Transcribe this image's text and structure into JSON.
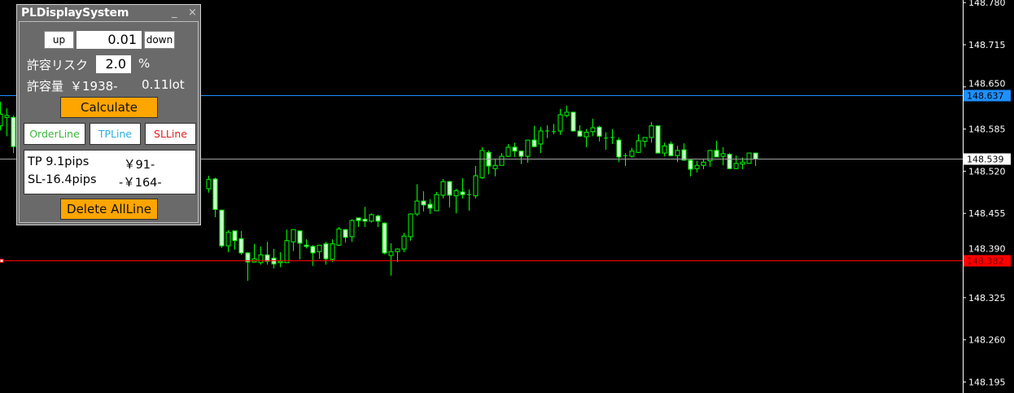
{
  "panel": {
    "title": "PLDisplaySystem",
    "minimize_glyph": "_",
    "close_glyph": "×",
    "up_label": "up",
    "lot_step_value": "0.01",
    "down_label": "down",
    "risk_label": "許容リスク",
    "risk_value": "2.0",
    "risk_unit": "%",
    "allowance_label": "許容量",
    "allowance_amount": "￥1938-",
    "lot_value": "0.11lot",
    "calculate_label": "Calculate",
    "order_line_label": "OrderLine",
    "tp_line_label": "TPLine",
    "sl_line_label": "SLLine",
    "tp_pips": "TP 9.1pips",
    "tp_amount": "￥91-",
    "sl_pips": "SL-16.4pips",
    "sl_amount": "-￥164-",
    "delete_label": "Delete AllLine",
    "colors": {
      "orange": "#ffa500",
      "order": "#3cb83c",
      "tp": "#2eaee0",
      "sl": "#e02020"
    }
  },
  "chart_data": {
    "type": "candlestick",
    "ylim": [
      148.178,
      148.784
    ],
    "y_ticks": [
      "148.780",
      "148.715",
      "148.650",
      "148.585",
      "148.520",
      "148.455",
      "148.390",
      "148.325",
      "148.260",
      "148.195"
    ],
    "grid": false,
    "colors": {
      "bull_outline": "#00ff00",
      "bear_fill": "#ccffcc",
      "background": "#000000"
    },
    "hlines": [
      {
        "price": "148.637",
        "color": "#1e90ff",
        "label_bg": "#1e90ff",
        "label_text": "#000000"
      },
      {
        "price": "148.539",
        "color": "#a0a0a0",
        "label_bg": "#ffffff",
        "label_text": "#000000"
      },
      {
        "price": "148.382",
        "color": "#ff0000",
        "label_bg": "#ff0000",
        "label_text": "#800000"
      }
    ],
    "candles_ohlc": [
      [
        148.59,
        148.627,
        148.583,
        148.608
      ],
      [
        148.603,
        148.617,
        148.574,
        148.606
      ],
      [
        148.603,
        148.606,
        148.548,
        148.558
      ],
      null,
      null,
      null,
      null,
      null,
      null,
      null,
      null,
      null,
      null,
      null,
      null,
      null,
      null,
      null,
      null,
      null,
      null,
      null,
      null,
      null,
      null,
      null,
      null,
      null,
      null,
      null,
      null,
      null,
      [
        148.493,
        148.513,
        148.487,
        148.507
      ],
      [
        148.508,
        148.51,
        148.449,
        148.461
      ],
      [
        148.46,
        148.461,
        148.402,
        148.405
      ],
      [
        148.405,
        148.429,
        148.395,
        148.426
      ],
      [
        148.428,
        148.428,
        148.399,
        148.413
      ],
      [
        148.416,
        148.428,
        148.391,
        148.394
      ],
      [
        148.394,
        148.395,
        148.351,
        148.38
      ],
      [
        148.38,
        148.408,
        148.379,
        148.385
      ],
      [
        148.379,
        148.404,
        148.376,
        148.391
      ],
      [
        148.391,
        148.411,
        148.376,
        148.381
      ],
      [
        148.386,
        148.4,
        148.37,
        148.377
      ],
      [
        148.379,
        148.395,
        148.372,
        148.381
      ],
      [
        148.379,
        148.43,
        148.379,
        148.413
      ],
      [
        148.411,
        148.43,
        148.397,
        148.43
      ],
      [
        148.428,
        148.428,
        148.384,
        148.409
      ],
      [
        148.406,
        148.415,
        148.401,
        148.404
      ],
      [
        148.404,
        148.406,
        148.374,
        148.394
      ],
      [
        148.396,
        148.406,
        148.385,
        148.406
      ],
      [
        148.408,
        148.411,
        148.376,
        148.385
      ],
      [
        148.384,
        148.415,
        148.38,
        148.408
      ],
      [
        148.406,
        148.434,
        148.405,
        148.431
      ],
      [
        148.43,
        148.431,
        148.41,
        148.418
      ],
      [
        148.419,
        148.446,
        148.411,
        148.444
      ],
      [
        148.448,
        148.448,
        148.434,
        148.444
      ],
      [
        148.446,
        148.465,
        148.434,
        148.443
      ],
      [
        148.443,
        148.455,
        148.441,
        148.453
      ],
      [
        148.451,
        148.453,
        148.434,
        148.443
      ],
      [
        148.44,
        148.441,
        148.392,
        148.394
      ],
      [
        148.39,
        148.409,
        148.359,
        148.396
      ],
      [
        148.396,
        148.401,
        148.38,
        148.4
      ],
      [
        148.4,
        148.425,
        148.395,
        148.42
      ],
      [
        148.419,
        148.455,
        148.413,
        148.454
      ],
      [
        148.454,
        148.5,
        148.451,
        148.474
      ],
      [
        148.474,
        148.489,
        148.458,
        148.468
      ],
      [
        148.469,
        148.477,
        148.454,
        148.463
      ],
      [
        148.459,
        148.488,
        148.459,
        148.484
      ],
      [
        148.483,
        148.508,
        148.478,
        148.504
      ],
      [
        148.504,
        148.505,
        148.464,
        148.483
      ],
      [
        148.482,
        148.493,
        148.455,
        148.49
      ],
      [
        148.488,
        148.509,
        148.478,
        148.484
      ],
      [
        148.484,
        148.492,
        148.459,
        148.484
      ],
      [
        148.482,
        148.528,
        148.478,
        148.513
      ],
      [
        148.51,
        148.557,
        148.508,
        148.552
      ],
      [
        148.549,
        148.552,
        148.515,
        148.528
      ],
      [
        148.524,
        148.539,
        148.512,
        148.529
      ],
      [
        148.529,
        148.548,
        148.529,
        148.543
      ],
      [
        148.543,
        148.562,
        148.542,
        148.557
      ],
      [
        148.557,
        148.564,
        148.542,
        148.551
      ],
      [
        148.551,
        148.551,
        148.531,
        148.543
      ],
      [
        148.543,
        148.568,
        148.533,
        148.568
      ],
      [
        148.568,
        148.59,
        148.557,
        148.558
      ],
      [
        148.562,
        148.588,
        148.548,
        148.582
      ],
      [
        148.582,
        148.591,
        148.571,
        148.582
      ],
      [
        148.581,
        148.593,
        148.577,
        148.581
      ],
      [
        148.582,
        148.616,
        148.576,
        148.607
      ],
      [
        148.606,
        148.621,
        148.603,
        148.611
      ],
      [
        148.611,
        148.611,
        148.581,
        148.582
      ],
      [
        148.582,
        148.591,
        148.573,
        148.574
      ],
      [
        148.573,
        148.585,
        148.557,
        148.58
      ],
      [
        148.581,
        148.601,
        148.574,
        148.587
      ],
      [
        148.588,
        148.59,
        148.566,
        148.574
      ],
      [
        148.571,
        148.58,
        148.553,
        148.571
      ],
      [
        148.572,
        148.585,
        148.562,
        148.572
      ],
      [
        148.568,
        148.572,
        148.534,
        148.542
      ],
      [
        148.544,
        148.548,
        148.528,
        148.544
      ],
      [
        148.543,
        148.556,
        148.541,
        148.551
      ],
      [
        148.549,
        148.577,
        148.548,
        148.567
      ],
      [
        148.566,
        148.572,
        148.557,
        148.572
      ],
      [
        148.572,
        148.596,
        148.564,
        148.59
      ],
      [
        148.59,
        148.59,
        148.548,
        148.548
      ],
      [
        148.548,
        148.564,
        148.543,
        148.559
      ],
      [
        148.562,
        148.566,
        148.543,
        148.544
      ],
      [
        148.544,
        148.559,
        148.534,
        148.552
      ],
      [
        148.553,
        148.563,
        148.537,
        148.537
      ],
      [
        148.537,
        148.539,
        148.512,
        148.523
      ],
      [
        148.524,
        148.536,
        148.518,
        148.529
      ],
      [
        148.529,
        148.538,
        148.523,
        148.534
      ],
      [
        148.536,
        148.552,
        148.527,
        148.552
      ],
      [
        148.552,
        148.567,
        148.542,
        148.542
      ],
      [
        148.543,
        148.557,
        148.529,
        148.547
      ],
      [
        148.546,
        148.548,
        148.523,
        148.524
      ],
      [
        148.524,
        148.544,
        148.523,
        148.532
      ],
      [
        148.531,
        148.541,
        148.523,
        148.534
      ],
      [
        148.532,
        148.548,
        148.532,
        148.548
      ],
      [
        148.548,
        148.548,
        148.528,
        148.539
      ]
    ]
  }
}
